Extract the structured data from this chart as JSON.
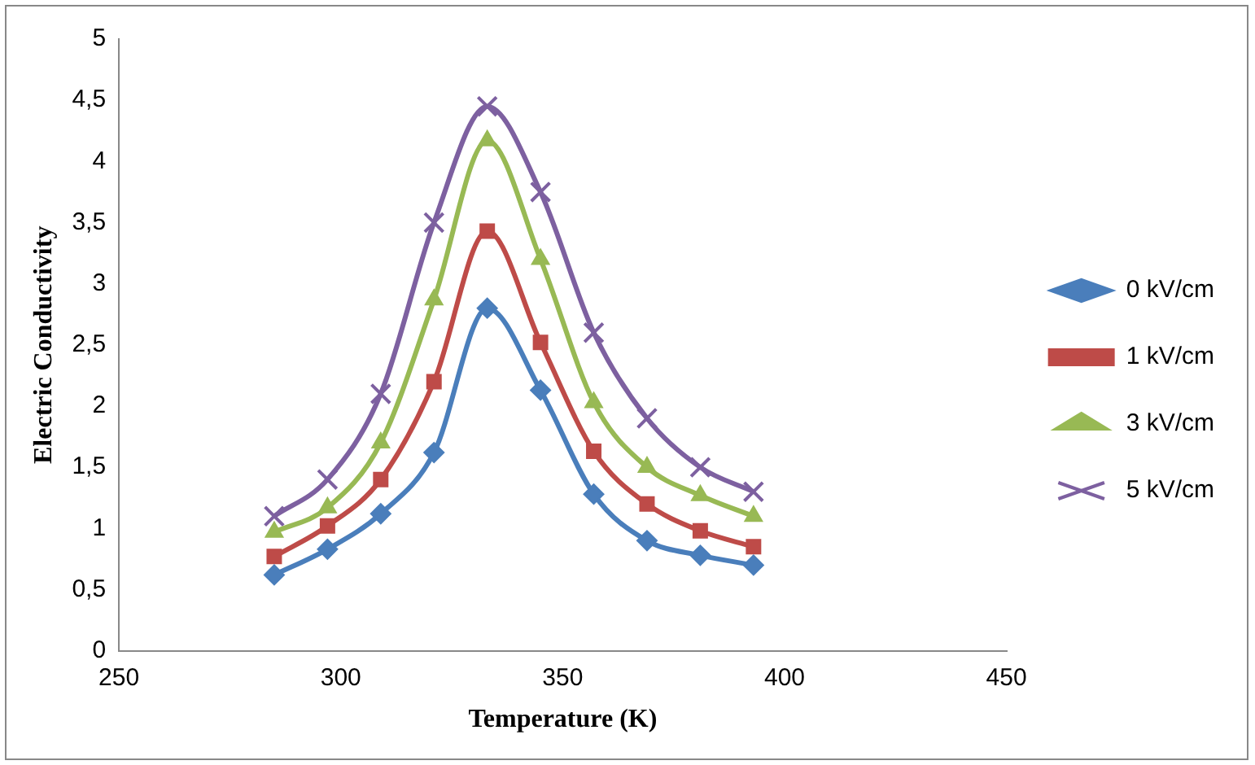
{
  "chart_data": {
    "type": "line",
    "xlabel": "Temperature (K)",
    "ylabel": "Electric Conductivity",
    "x": [
      285,
      297,
      309,
      321,
      333,
      345,
      357,
      369,
      381,
      393
    ],
    "series": [
      {
        "name": "0 kV/cm",
        "color": "#4a7ebb",
        "marker": "diamond",
        "values": [
          0.62,
          0.83,
          1.12,
          1.62,
          2.8,
          2.13,
          1.28,
          0.9,
          0.78,
          0.7
        ]
      },
      {
        "name": "1 kV/cm",
        "color": "#be4b48",
        "marker": "square",
        "values": [
          0.77,
          1.02,
          1.4,
          2.2,
          3.43,
          2.52,
          1.63,
          1.2,
          0.98,
          0.85
        ]
      },
      {
        "name": "3 kV/cm",
        "color": "#98b954",
        "marker": "triangle",
        "values": [
          0.97,
          1.17,
          1.7,
          2.87,
          4.17,
          3.2,
          2.03,
          1.5,
          1.27,
          1.1
        ]
      },
      {
        "name": "5 kV/cm",
        "color": "#7d60a0",
        "marker": "cross",
        "values": [
          1.1,
          1.4,
          2.1,
          3.5,
          4.45,
          3.75,
          2.6,
          1.9,
          1.5,
          1.3
        ]
      }
    ],
    "xlim": [
      250,
      450
    ],
    "xticks": [
      250,
      300,
      350,
      400,
      450
    ],
    "ylim": [
      0,
      5
    ],
    "yticks": [
      0,
      {
        "value": 0.5,
        "label": "0,5"
      },
      1,
      {
        "value": 1.5,
        "label": "1,5"
      },
      2,
      {
        "value": 2.5,
        "label": "2,5"
      },
      3,
      {
        "value": 3.5,
        "label": "3,5"
      },
      4,
      {
        "value": 4.5,
        "label": "4,5"
      },
      5
    ],
    "grid": false,
    "legend": "right"
  }
}
